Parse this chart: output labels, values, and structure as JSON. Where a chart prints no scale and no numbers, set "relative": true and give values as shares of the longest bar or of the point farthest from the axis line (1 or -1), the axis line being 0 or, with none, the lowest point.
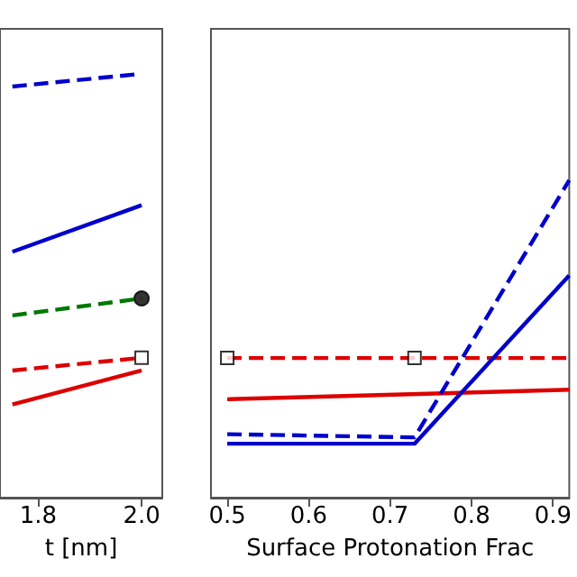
{
  "chart_data": [
    {
      "type": "line",
      "xlabel": "t [nm]",
      "xlim": [
        1.726,
        2.04
      ],
      "xticks": [
        1.8,
        {
          "value": 2.0,
          "label": "2.0"
        }
      ],
      "relative": true,
      "tick_labels": "x",
      "grid": false,
      "series": [
        {
          "color": "#0000cc",
          "line_style": "dashed",
          "marker": "none",
          "x": [
            1.75,
            2.0
          ],
          "values": [
            0.97,
            1
          ]
        },
        {
          "color": "#0000cc",
          "line_style": "solid",
          "marker": "none",
          "x": [
            1.75,
            2.0
          ],
          "values": [
            0.58,
            0.69
          ]
        },
        {
          "color": "#007700",
          "line_style": "dashed",
          "marker": "none",
          "x": [
            1.75,
            2.0
          ],
          "values": [
            0.43,
            0.47
          ]
        },
        {
          "color": "#dd0000",
          "line_style": "dashed",
          "marker": "none",
          "x": [
            1.75,
            2.0
          ],
          "values": [
            0.3,
            0.33
          ]
        },
        {
          "color": "#dd0000",
          "line_style": "solid",
          "marker": "none",
          "x": [
            1.75,
            2.0
          ],
          "values": [
            0.22,
            0.3
          ]
        },
        {
          "type": "scatter",
          "color": "#000000",
          "marker": "circle",
          "x": [
            2.0
          ],
          "values": [
            0.47
          ]
        },
        {
          "type": "scatter",
          "color": "#000000",
          "marker": "square",
          "x": [
            2.0
          ],
          "values": [
            0.33
          ]
        }
      ]
    },
    {
      "type": "line",
      "xlabel": "Surface Protonation Frac",
      "xlim": [
        0.48,
        0.92
      ],
      "xticks": [
        0.5,
        0.6,
        0.7,
        0.8,
        0.9
      ],
      "relative": true,
      "tick_labels": "x",
      "grid": false,
      "series": [
        {
          "color": "#dd0000",
          "line_style": "dashed",
          "marker": "none",
          "x": [
            0.5,
            0.73,
            0.92
          ],
          "values": [
            0.44,
            0.44,
            0.44
          ]
        },
        {
          "color": "#dd0000",
          "line_style": "solid",
          "marker": "none",
          "x": [
            0.5,
            0.92
          ],
          "values": [
            0.31,
            0.34
          ]
        },
        {
          "color": "#0000cc",
          "line_style": "dashed",
          "marker": "none",
          "x": [
            0.5,
            0.73,
            0.92
          ],
          "values": [
            0.2,
            0.19,
            1
          ]
        },
        {
          "color": "#0000cc",
          "line_style": "solid",
          "marker": "none",
          "x": [
            0.5,
            0.73,
            0.92
          ],
          "values": [
            0.17,
            0.17,
            0.7
          ]
        },
        {
          "type": "scatter",
          "color": "#000000",
          "marker": "square",
          "x": [
            0.5,
            0.73
          ],
          "values": [
            0.44,
            0.44
          ]
        }
      ]
    }
  ]
}
